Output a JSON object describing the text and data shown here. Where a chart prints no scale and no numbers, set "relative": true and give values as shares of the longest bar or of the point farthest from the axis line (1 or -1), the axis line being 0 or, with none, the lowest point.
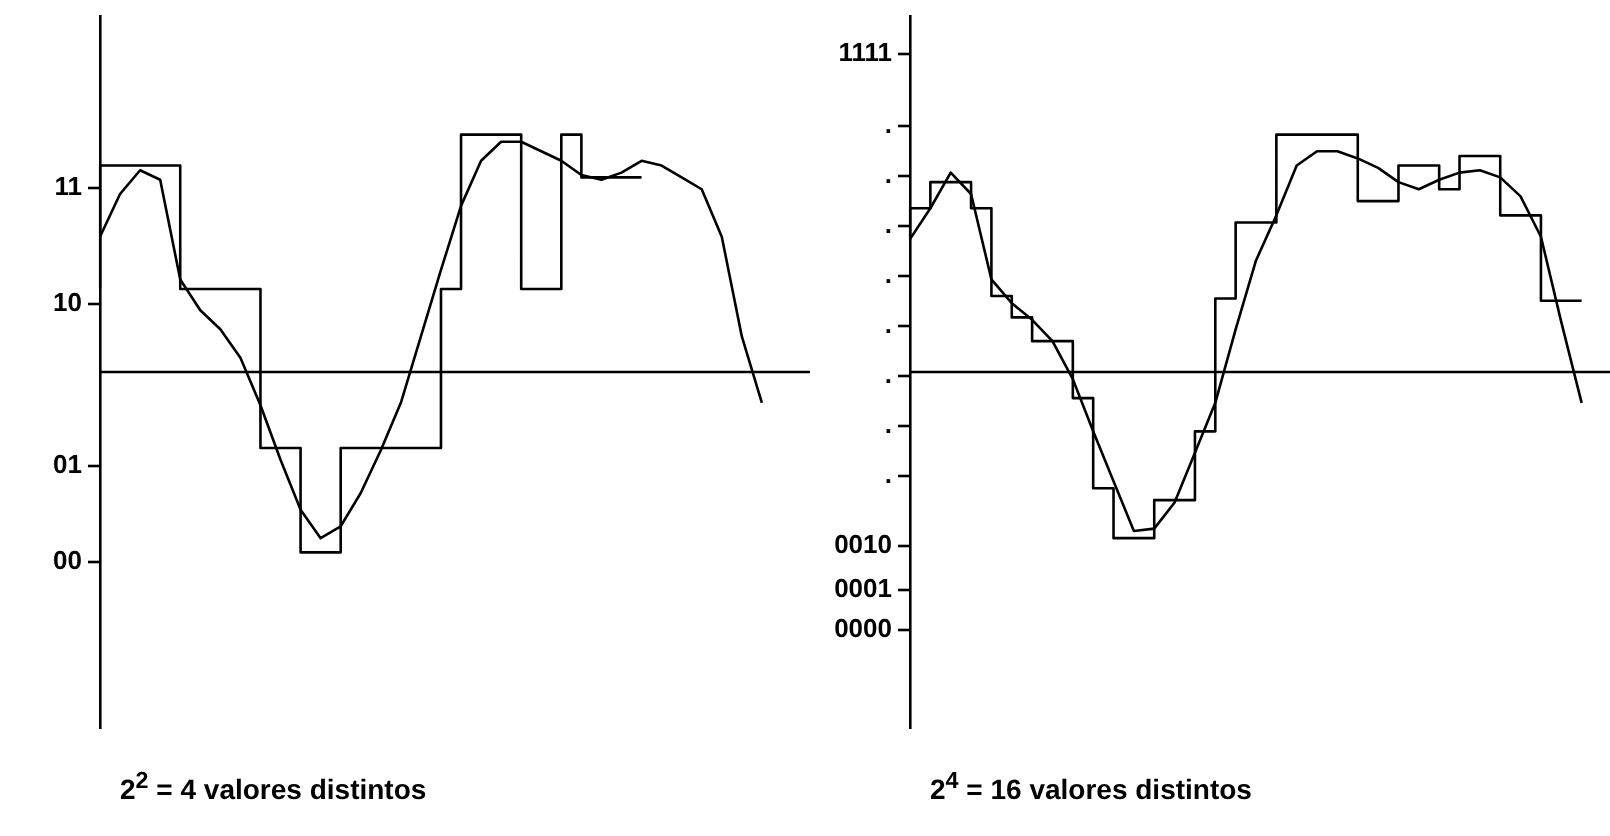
{
  "chart_data": [
    {
      "type": "line",
      "relative": true,
      "tick_labels": false,
      "grid": false,
      "legend": false,
      "marker": "none",
      "line_style": "solid",
      "categories": [
        null,
        null,
        null,
        null,
        null,
        null,
        null,
        null,
        null,
        null,
        null,
        null,
        null,
        null,
        null,
        null,
        null,
        null,
        null,
        null,
        null,
        null,
        null,
        null,
        null,
        null,
        null,
        null,
        null,
        null,
        null,
        null,
        null,
        null,
        null,
        null
      ],
      "annotations": [
        "11",
        "10",
        "01",
        "00",
        "2$^{2}$ = 4 valores distintos"
      ],
      "series": [
        {
          "type": "step",
          "color": "#000000",
          "values": [
            0.35,
            0.87,
            0.87,
            0.87,
            0.87,
            0.35,
            0.35,
            0.35,
            0.35,
            -0.32,
            -0.32,
            -0.76,
            -0.76,
            -0.32,
            -0.32,
            -0.32,
            -0.32,
            -0.32,
            0.35,
            1,
            1,
            1,
            0.35,
            0.35,
            1,
            0.82,
            0.82,
            0.82,
            null,
            null,
            null,
            null,
            null,
            null,
            null,
            null
          ]
        },
        {
          "type": "line",
          "color": "#000000",
          "values": [
            0.57,
            0.75,
            0.85,
            0.81,
            0.39,
            0.26,
            0.18,
            0.06,
            -0.14,
            -0.37,
            -0.58,
            -0.7,
            -0.65,
            -0.51,
            -0.33,
            -0.13,
            0.15,
            0.43,
            0.7,
            0.89,
            0.97,
            0.97,
            0.93,
            0.89,
            0.83,
            0.81,
            0.84,
            0.89,
            0.87,
            0.82,
            0.77,
            0.57,
            0.15,
            -0.13,
            null,
            null
          ]
        }
      ]
    },
    {
      "type": "line",
      "relative": true,
      "tick_labels": false,
      "grid": false,
      "legend": false,
      "marker": "none",
      "line_style": "solid",
      "categories": [
        null,
        null,
        null,
        null,
        null,
        null,
        null,
        null,
        null,
        null,
        null,
        null,
        null,
        null,
        null,
        null,
        null,
        null,
        null,
        null,
        null,
        null,
        null,
        null,
        null,
        null,
        null,
        null,
        null,
        null,
        null,
        null,
        null,
        null,
        null
      ],
      "annotations": [
        "1111",
        ".",
        ".",
        ".",
        ".",
        ".",
        ".",
        ".",
        ".",
        "0010",
        "0001",
        "0000",
        "2$^{4}$ = 16 valores distintos"
      ],
      "series": [
        {
          "type": "step",
          "color": "#000000",
          "values": [
            0.56,
            0.69,
            0.8,
            0.8,
            0.69,
            0.32,
            0.23,
            0.13,
            0.13,
            -0.11,
            -0.49,
            -0.7,
            -0.7,
            -0.54,
            -0.54,
            -0.25,
            0.31,
            0.63,
            0.63,
            1,
            1,
            1,
            1,
            0.72,
            0.72,
            0.87,
            0.87,
            0.77,
            0.91,
            0.91,
            0.66,
            0.66,
            0.3,
            0.3,
            null
          ]
        },
        {
          "type": "line",
          "color": "#000000",
          "values": [
            0.56,
            0.69,
            0.84,
            0.75,
            0.39,
            0.29,
            0.22,
            0.13,
            -0.03,
            -0.25,
            -0.46,
            -0.67,
            -0.66,
            -0.55,
            -0.34,
            -0.13,
            0.18,
            0.47,
            0.66,
            0.87,
            0.93,
            0.93,
            0.9,
            0.86,
            0.8,
            0.77,
            0.81,
            0.84,
            0.85,
            0.82,
            0.74,
            0.57,
            0.21,
            -0.13,
            null
          ]
        }
      ]
    }
  ]
}
